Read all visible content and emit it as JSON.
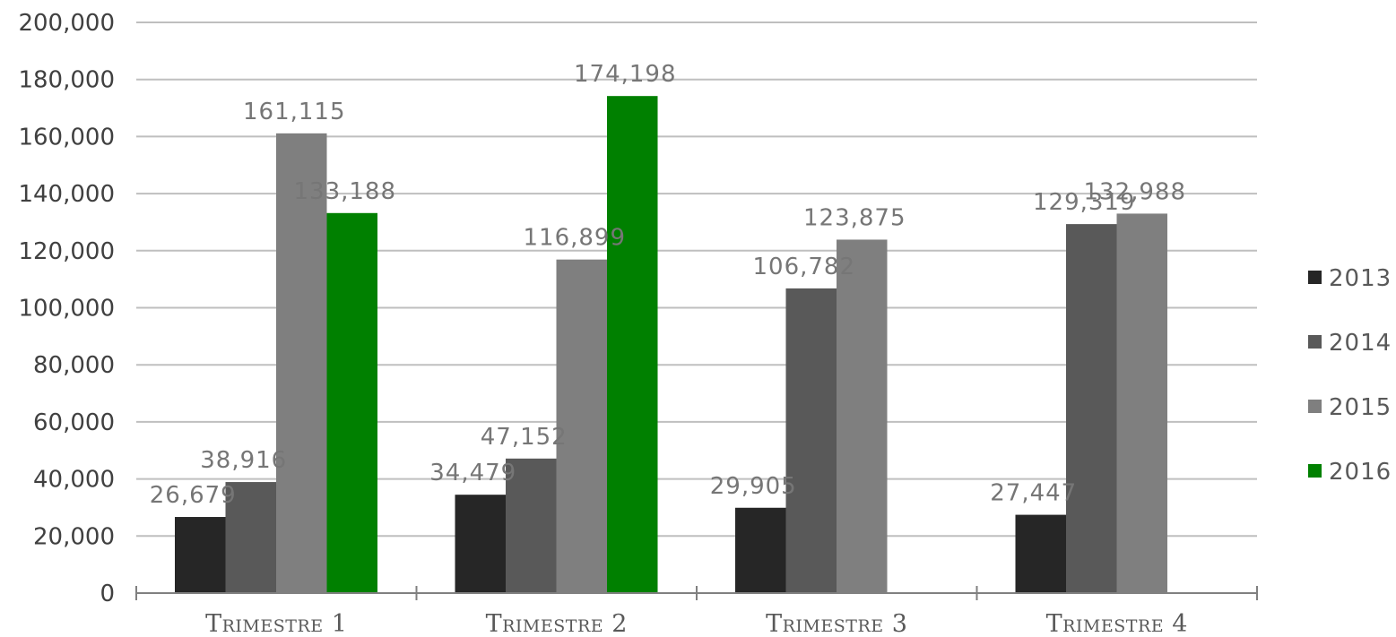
{
  "chart_data": {
    "type": "bar",
    "title": "",
    "xlabel": "",
    "ylabel": "",
    "categories": [
      "Trimestre 1",
      "Trimestre 2",
      "Trimestre 3",
      "Trimestre 4"
    ],
    "series": [
      {
        "name": "2013",
        "color": "#262626",
        "values": [
          26679,
          34479,
          29905,
          27447
        ],
        "labels": [
          "26,679",
          "34,479",
          "29,905",
          "27,447"
        ]
      },
      {
        "name": "2014",
        "color": "#595959",
        "values": [
          38916,
          47152,
          106782,
          129319
        ],
        "labels": [
          "38,916",
          "47,152",
          "106,782",
          "129,319"
        ]
      },
      {
        "name": "2015",
        "color": "#7f7f7f",
        "values": [
          161115,
          116899,
          123875,
          132988
        ],
        "labels": [
          "161,115",
          "116,899",
          "123,875",
          "132,988"
        ]
      },
      {
        "name": "2016",
        "color": "#008000",
        "values": [
          133188,
          174198,
          null,
          null
        ],
        "labels": [
          "133,188",
          "174,198",
          "",
          ""
        ]
      }
    ],
    "ylim": [
      0,
      200000
    ],
    "y_ticks": [
      0,
      20000,
      40000,
      60000,
      80000,
      100000,
      120000,
      140000,
      160000,
      180000,
      200000
    ],
    "y_tick_labels": [
      "0",
      "20,000",
      "40,000",
      "60,000",
      "80,000",
      "100,000",
      "120,000",
      "140,000",
      "160,000",
      "180,000",
      "200,000"
    ],
    "grid": true,
    "legend_position": "right"
  }
}
